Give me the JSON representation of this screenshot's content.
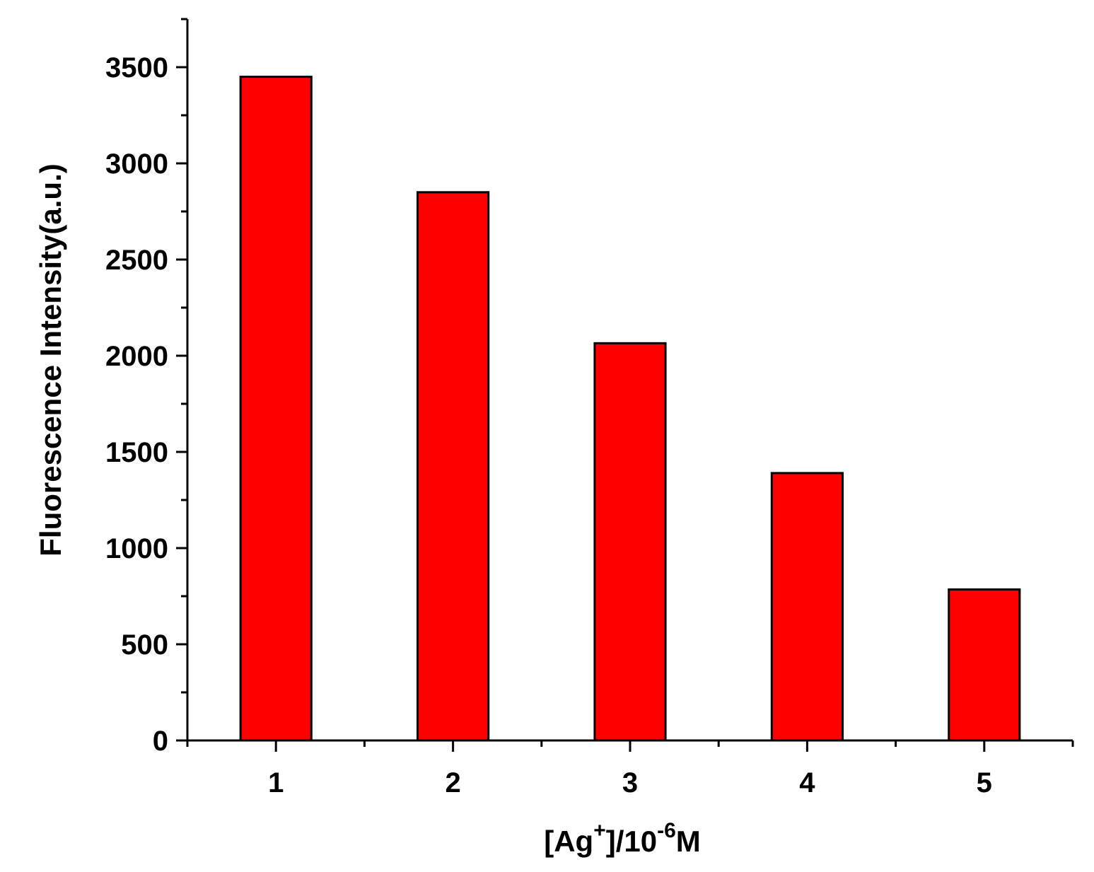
{
  "chart_data": {
    "type": "bar",
    "categories": [
      "1",
      "2",
      "3",
      "4",
      "5"
    ],
    "values": [
      3450,
      2850,
      2065,
      1390,
      785
    ],
    "xlabel_parts": {
      "prefix": "[Ag",
      "sup1": "+",
      "middle": "]/10",
      "sup2": "-6",
      "suffix": "M"
    },
    "ylabel": "Fluorescence Intensity(a.u.)",
    "ylim": [
      0,
      3750
    ],
    "yticks": [
      "0",
      "500",
      "1000",
      "1500",
      "2000",
      "2500",
      "3000",
      "3500"
    ],
    "grid": false,
    "legend": "none",
    "bar_color": "#ff0000",
    "edge_color": "#000000"
  }
}
